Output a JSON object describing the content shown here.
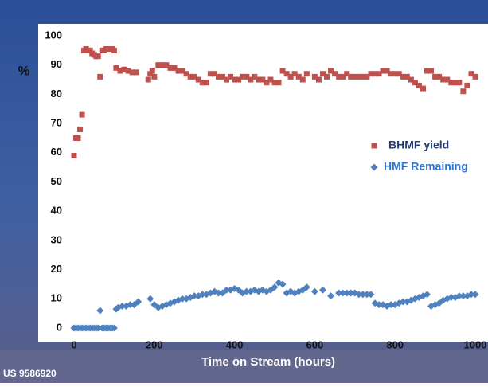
{
  "chart_data": {
    "type": "scatter",
    "ylabel": "%",
    "xlabel": "Time on Stream (hours)",
    "footnote": "US 9586920",
    "xlim": [
      0,
      1000
    ],
    "xticks": [
      0,
      200,
      400,
      600,
      800,
      1000
    ],
    "ylim": [
      0,
      100
    ],
    "yticks": [
      0,
      10,
      20,
      30,
      40,
      50,
      60,
      70,
      80,
      90,
      100
    ],
    "grid": false,
    "series": [
      {
        "name": "BHMF yield",
        "color": "#c0504d",
        "marker": "square",
        "label_color": "#1f3b73",
        "x": [
          0,
          5,
          10,
          15,
          20,
          25,
          30,
          35,
          40,
          45,
          50,
          55,
          60,
          65,
          70,
          75,
          80,
          85,
          90,
          95,
          100,
          105,
          115,
          125,
          135,
          145,
          155,
          185,
          190,
          195,
          200,
          210,
          220,
          230,
          240,
          250,
          260,
          270,
          280,
          290,
          300,
          310,
          320,
          330,
          340,
          350,
          360,
          370,
          380,
          390,
          400,
          410,
          420,
          430,
          440,
          450,
          460,
          470,
          480,
          490,
          500,
          510,
          520,
          530,
          540,
          550,
          560,
          570,
          580,
          600,
          610,
          620,
          630,
          640,
          650,
          660,
          670,
          680,
          690,
          700,
          710,
          720,
          730,
          740,
          750,
          760,
          770,
          780,
          790,
          800,
          810,
          820,
          830,
          840,
          850,
          860,
          870,
          880,
          890,
          900,
          910,
          920,
          930,
          940,
          950,
          960,
          970,
          980,
          990,
          1000
        ],
        "values": [
          59,
          65,
          65,
          68,
          73,
          95,
          95.5,
          95,
          95,
          94,
          93.5,
          93,
          93,
          86,
          95,
          95,
          95.5,
          95.5,
          95.5,
          95.5,
          95,
          89,
          88,
          88.5,
          88,
          87.5,
          87.5,
          85,
          87,
          88,
          86,
          90,
          90,
          90,
          89,
          89,
          88,
          88,
          87,
          86,
          86,
          85,
          84,
          84,
          87,
          87,
          86,
          86,
          85,
          86,
          85,
          85,
          86,
          86,
          85,
          86,
          85,
          85,
          84,
          85,
          84,
          84,
          88,
          87,
          86,
          87,
          86,
          85,
          87,
          86,
          85,
          87,
          86,
          88,
          87,
          86,
          86,
          87,
          86,
          86,
          86,
          86,
          86,
          87,
          87,
          87,
          88,
          88,
          87,
          87,
          87,
          86,
          86,
          85,
          84,
          83,
          82,
          88,
          88,
          86,
          86,
          85,
          85,
          84,
          84,
          84,
          81,
          83,
          87,
          86
        ]
      },
      {
        "name": "HMF Remaining",
        "color": "#4f81bd",
        "marker": "diamond",
        "label_color": "#2e75d6",
        "x": [
          0,
          5,
          10,
          15,
          20,
          25,
          30,
          35,
          40,
          45,
          50,
          55,
          60,
          65,
          70,
          75,
          80,
          85,
          90,
          95,
          100,
          105,
          110,
          120,
          130,
          140,
          150,
          160,
          190,
          200,
          210,
          220,
          230,
          240,
          250,
          260,
          270,
          280,
          290,
          300,
          310,
          320,
          330,
          340,
          350,
          360,
          370,
          380,
          390,
          400,
          410,
          420,
          430,
          440,
          450,
          460,
          470,
          480,
          490,
          500,
          510,
          520,
          530,
          540,
          550,
          560,
          570,
          580,
          600,
          620,
          640,
          660,
          670,
          680,
          690,
          700,
          710,
          720,
          730,
          740,
          750,
          760,
          770,
          780,
          790,
          800,
          810,
          820,
          830,
          840,
          850,
          860,
          870,
          880,
          890,
          900,
          910,
          920,
          930,
          940,
          950,
          960,
          970,
          980,
          990,
          1000
        ],
        "values": [
          0,
          0,
          0,
          0,
          0,
          0,
          0,
          0,
          0,
          0,
          0,
          0,
          0,
          6,
          0,
          0,
          0,
          0,
          0,
          0,
          0,
          6.5,
          7,
          7.5,
          7.5,
          8,
          8,
          9,
          10,
          8,
          7,
          7.5,
          8,
          8.5,
          9,
          9.5,
          10,
          10,
          10.5,
          11,
          11,
          11.5,
          11.5,
          12,
          12.5,
          12,
          12,
          13,
          13,
          13.5,
          13,
          12,
          12.5,
          12.5,
          13,
          12.5,
          13,
          12.5,
          13,
          14,
          15.5,
          15,
          12,
          12.5,
          12,
          12.5,
          13,
          14,
          12.5,
          13,
          11,
          12,
          12,
          12,
          12,
          12,
          11.5,
          11.5,
          11.5,
          11.5,
          8.5,
          8,
          8,
          7.5,
          8,
          8,
          8.5,
          9,
          9,
          9.5,
          10,
          10.5,
          11,
          11.5,
          7.5,
          8,
          8.5,
          9.5,
          10,
          10.5,
          10.5,
          11,
          11,
          11,
          11.5,
          11.5
        ]
      }
    ]
  }
}
